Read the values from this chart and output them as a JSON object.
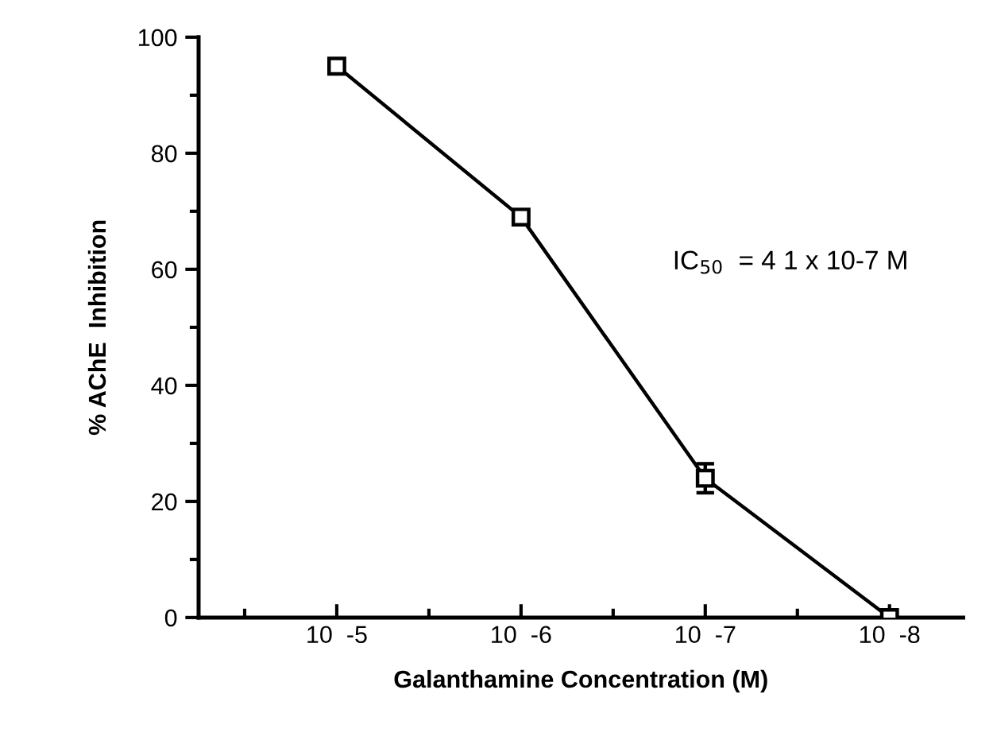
{
  "chart_data": {
    "type": "line",
    "xlabel": "Galanthamine Concentration (M)",
    "ylabel": "% AChE  Inhibition",
    "categories": [
      "10  -5",
      "10  -6",
      "10  -7",
      "10  -8"
    ],
    "series": [
      {
        "color": "#000000",
        "values": [
          95,
          69,
          24,
          0
        ],
        "errors": [
          null,
          null,
          2.5,
          null
        ]
      }
    ],
    "ylim": [
      0,
      100
    ],
    "yticks": [
      0,
      20,
      40,
      60,
      80,
      100
    ],
    "marker": "square",
    "line_style": "solid",
    "grid": false,
    "annotations": [
      "IC$_{50}$  = 4 1 x 10-7 M"
    ]
  }
}
